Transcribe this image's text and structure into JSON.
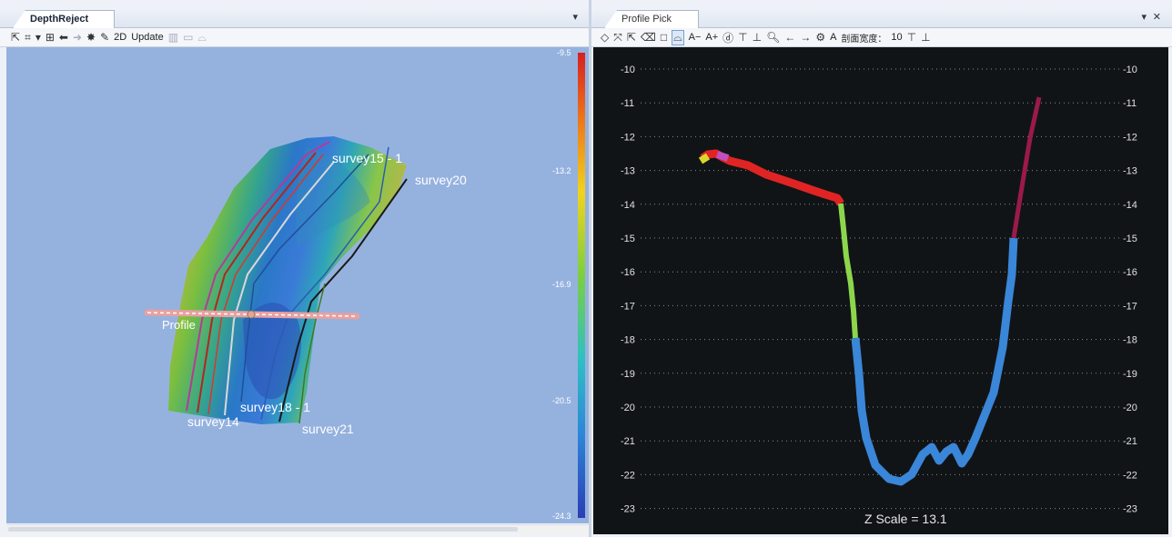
{
  "left_panel": {
    "tab_title": "DepthReject",
    "toolbar": {
      "icons": [
        "select-arrow-icon",
        "crop-icon",
        "dropdown-arrow-icon",
        "zoom-extent-icon",
        "undo-icon",
        "redo-icon",
        "magic-wand-icon",
        "edit-icon"
      ],
      "label_2d": "2D",
      "label_update": "Update",
      "icons_disabled": [
        "grid-icon",
        "rectangle-icon",
        "lasso-icon"
      ]
    },
    "colorbar": {
      "ticks": [
        "-9.5",
        "-13.2",
        "-16.9",
        "-20.5",
        "-24.3"
      ],
      "colors": [
        "#d71f1f",
        "#ee7a1a",
        "#f2d21c",
        "#7ccf3e",
        "#2ec0c4",
        "#2e86d8",
        "#2a3fb4"
      ]
    },
    "survey_labels": {
      "s15": "survey15 - 1",
      "s20": "survey20",
      "s18": "survey18 - 1",
      "s14": "survey14",
      "s21": "survey21",
      "profile": "Profile"
    }
  },
  "right_panel": {
    "tab_title": "Profile Pick",
    "toolbar": {
      "icons": [
        "diamond-icon",
        "expand-icon",
        "select-arrow-icon",
        "eraser-icon",
        "rectangle-select-icon",
        "lasso-select-icon"
      ],
      "font_minus": "A−",
      "font_plus": "A+",
      "icons2": [
        "circle-2d-icon",
        "align-top-icon",
        "align-bottom-icon",
        "zoom-icon",
        "arrow-left-icon",
        "arrow-right-icon",
        "gear-icon"
      ],
      "font_a": "A",
      "width_label": "剖面宽度：",
      "width_value": "10",
      "icons3": [
        "increase-icon",
        "decrease-icon"
      ]
    },
    "y_ticks": [
      "-10",
      "-11",
      "-12",
      "-13",
      "-14",
      "-15",
      "-16",
      "-17",
      "-18",
      "-19",
      "-20",
      "-21",
      "-22",
      "-23"
    ],
    "z_scale": "Z Scale = 13.1"
  }
}
